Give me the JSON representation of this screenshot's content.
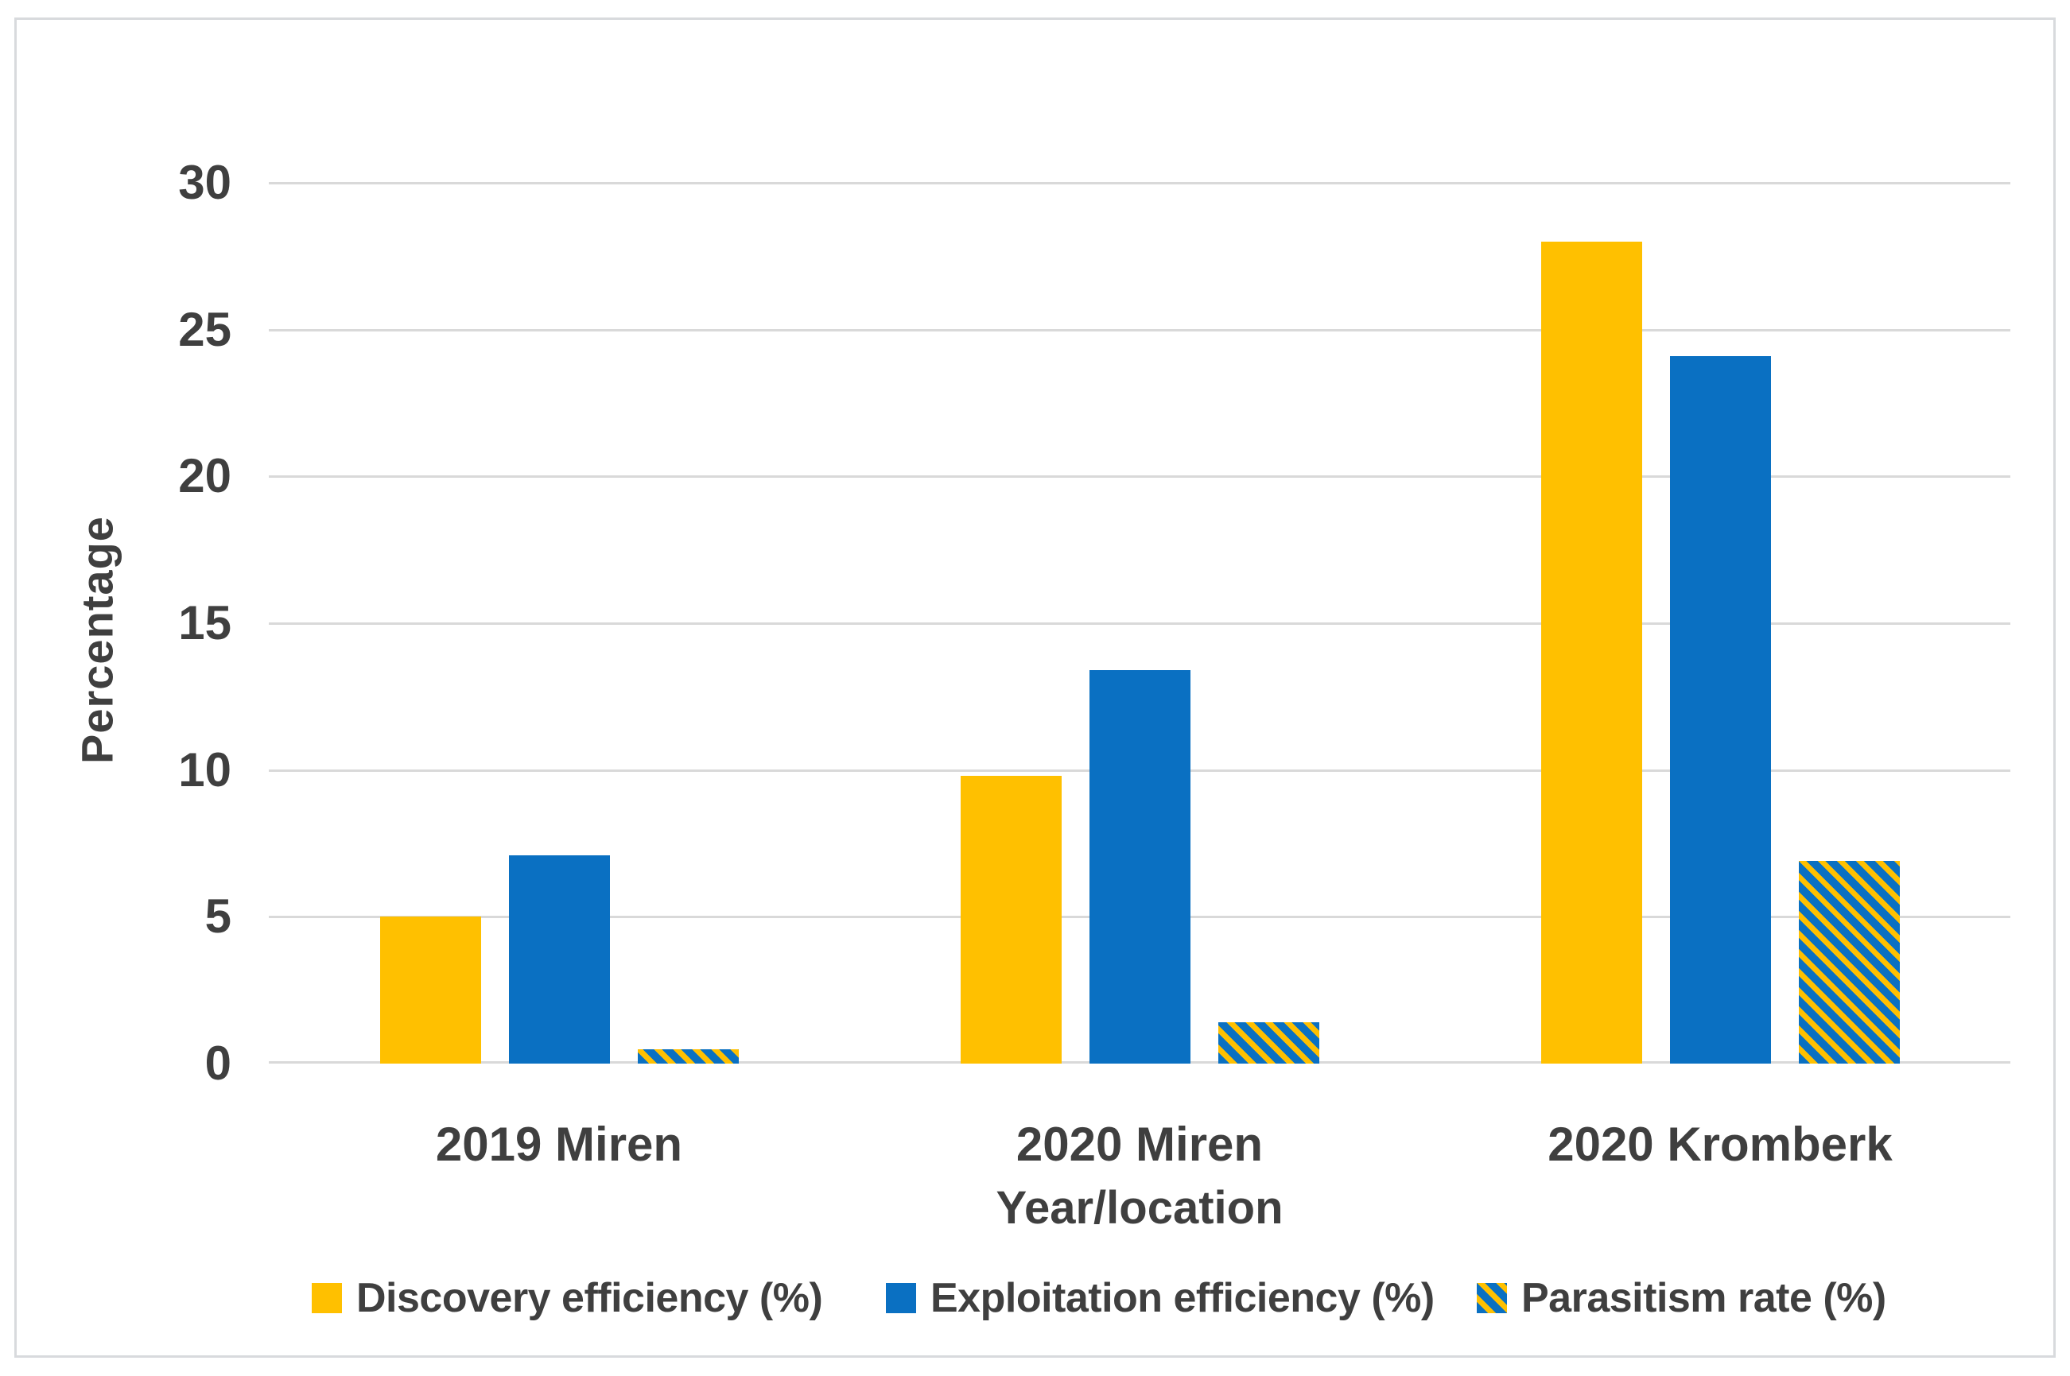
{
  "chart_data": {
    "type": "bar",
    "title": "",
    "categories": [
      "2019 Miren",
      "2020 Miren",
      "2020 Kromberk"
    ],
    "series": [
      {
        "name": "Discovery efficiency (%)",
        "color": "#FFC000",
        "pattern": "solid",
        "values": [
          5.0,
          9.8,
          28.0
        ]
      },
      {
        "name": "Exploitation efficiency (%)",
        "color": "#0A70C2",
        "pattern": "solid",
        "values": [
          7.1,
          13.4,
          24.1
        ]
      },
      {
        "name": "Parasitism rate (%)",
        "color": "#0A70C2",
        "pattern": "diagonal-stripes",
        "stripe_color": "#FFC000",
        "values": [
          0.5,
          1.4,
          6.9
        ]
      }
    ],
    "xlabel": "Year/location",
    "ylabel": "Percentage",
    "ylim": [
      0,
      30
    ],
    "yticks": [
      0,
      5,
      10,
      15,
      20,
      25,
      30
    ],
    "grid": true,
    "legend_position": "bottom"
  },
  "colors": {
    "grid": "#D9D9D9",
    "text": "#3F3F3F",
    "frame_border": "#D8DADD",
    "background": "#FFFFFF"
  }
}
